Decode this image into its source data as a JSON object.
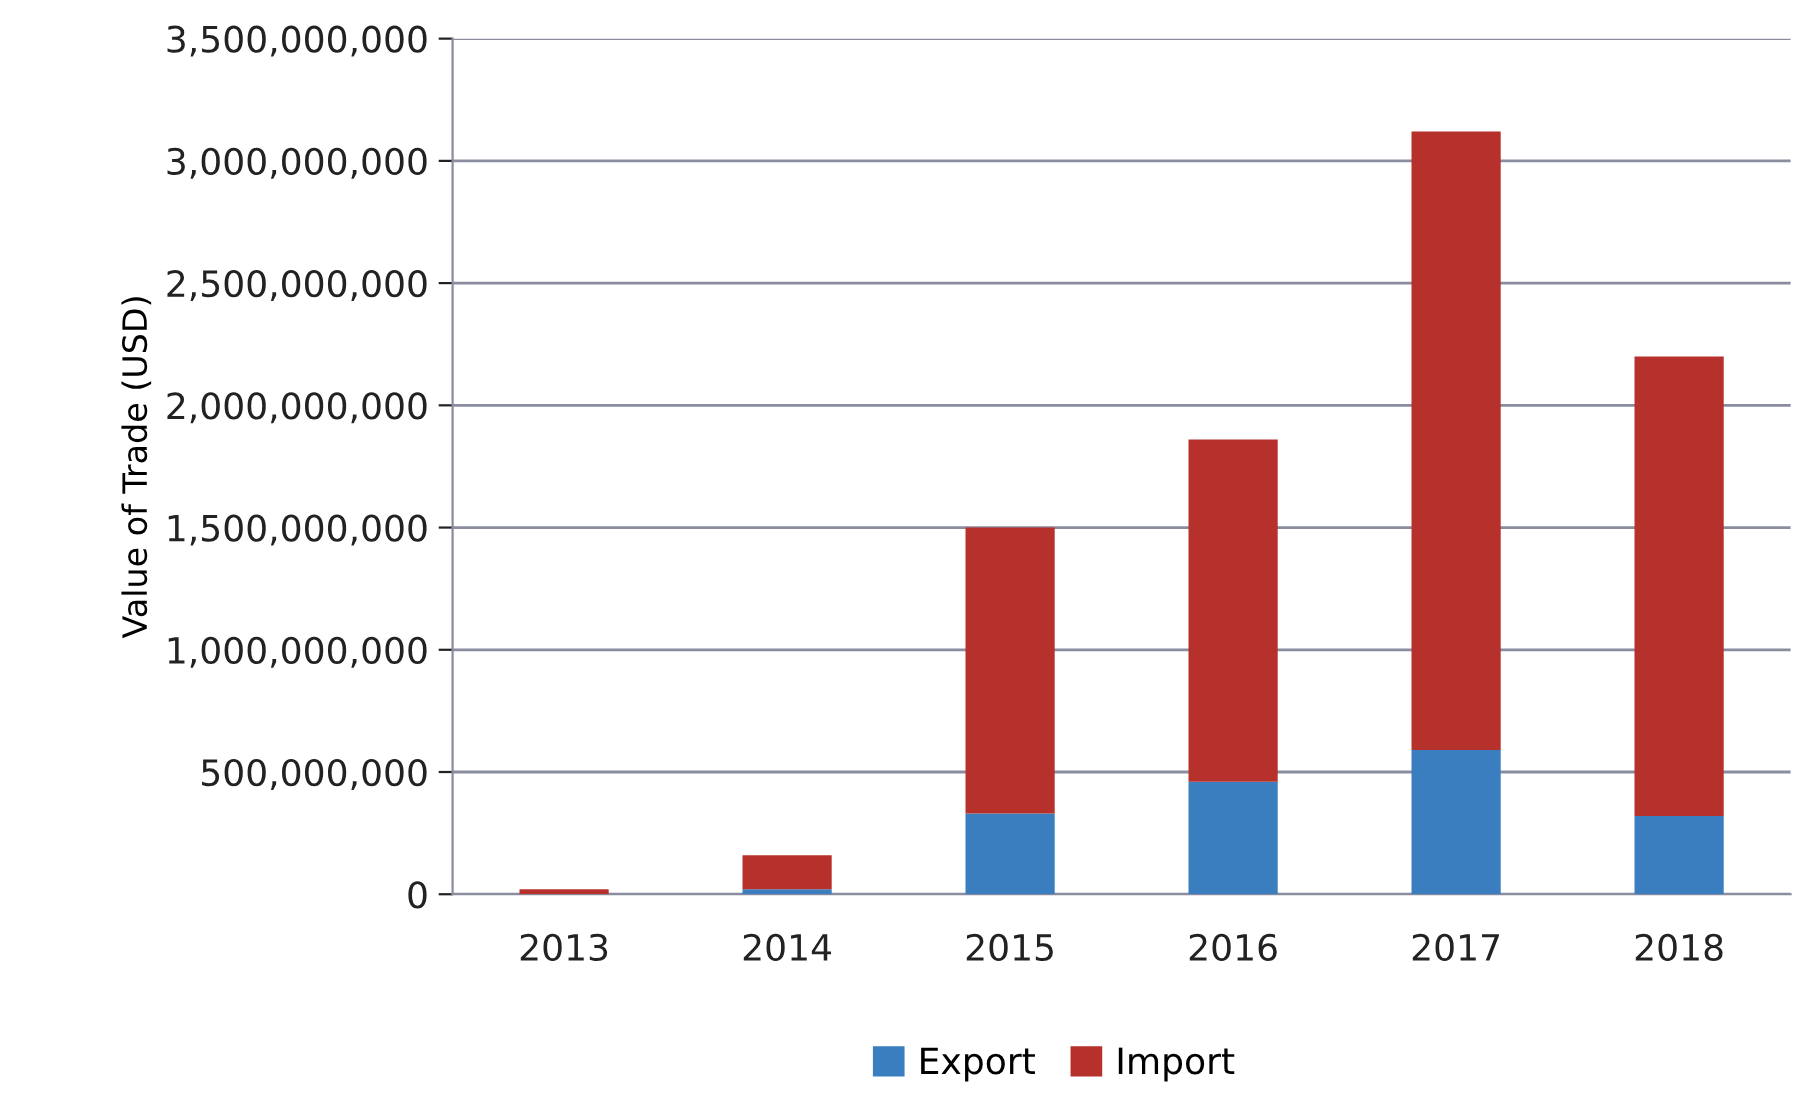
{
  "chart_data": {
    "type": "bar",
    "stacked": true,
    "ylabel": "Value of Trade (USD)",
    "categories": [
      "2013",
      "2014",
      "2015",
      "2016",
      "2017",
      "2018"
    ],
    "series": [
      {
        "name": "Export",
        "color": "#3a7ebf",
        "values": [
          null,
          20000000,
          330000000,
          460000000,
          590000000,
          320000000
        ]
      },
      {
        "name": "Import",
        "color": "#b7312c",
        "values": [
          20000000,
          140000000,
          1170000000,
          1400000000,
          2530000000,
          1880000000
        ]
      }
    ],
    "ylim": [
      0,
      3500000000
    ],
    "yticks": [
      {
        "value": 0,
        "label": "0"
      },
      {
        "value": 500000000,
        "label": "500,000,000"
      },
      {
        "value": 1000000000,
        "label": "1,000,000,000"
      },
      {
        "value": 1500000000,
        "label": "1,500,000,000"
      },
      {
        "value": 2000000000,
        "label": "2,000,000,000"
      },
      {
        "value": 2500000000,
        "label": "2,500,000,000"
      },
      {
        "value": 3000000000,
        "label": "3,000,000,000"
      },
      {
        "value": 3500000000,
        "label": "3,500,000,000"
      }
    ],
    "grid": "y",
    "legend": "bottom"
  }
}
